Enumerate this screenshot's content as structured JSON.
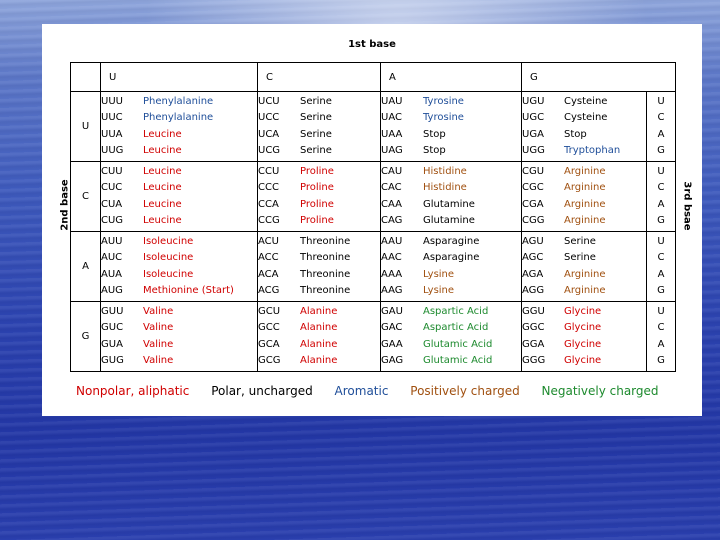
{
  "title": "1st base",
  "left_label": "2nd base",
  "right_label": "3rd bsae",
  "colors": {
    "nonpolar": "#d00000",
    "polar": "#000000",
    "aromatic": "#1f4e99",
    "positive": "#a05010",
    "negative": "#1d8a2e"
  },
  "header": [
    "U",
    "C",
    "A",
    "G"
  ],
  "rows": [
    {
      "label": "U",
      "third": [
        "U",
        "C",
        "A",
        "G"
      ],
      "cols": [
        [
          [
            "UUU",
            "Phenylalanine",
            "aro"
          ],
          [
            "UUC",
            "Phenylalanine",
            "aro"
          ],
          [
            "UUA",
            "Leucine",
            "np"
          ],
          [
            "UUG",
            "Leucine",
            "np"
          ]
        ],
        [
          [
            "UCU",
            "Serine",
            "pol"
          ],
          [
            "UCC",
            "Serine",
            "pol"
          ],
          [
            "UCA",
            "Serine",
            "pol"
          ],
          [
            "UCG",
            "Serine",
            "pol"
          ]
        ],
        [
          [
            "UAU",
            "Tyrosine",
            "aro"
          ],
          [
            "UAC",
            "Tyrosine",
            "aro"
          ],
          [
            "UAA",
            "Stop",
            "pol"
          ],
          [
            "UAG",
            "Stop",
            "pol"
          ]
        ],
        [
          [
            "UGU",
            "Cysteine",
            "pol"
          ],
          [
            "UGC",
            "Cysteine",
            "pol"
          ],
          [
            "UGA",
            "Stop",
            "pol"
          ],
          [
            "UGG",
            "Tryptophan",
            "aro"
          ]
        ]
      ]
    },
    {
      "label": "C",
      "third": [
        "U",
        "C",
        "A",
        "G"
      ],
      "cols": [
        [
          [
            "CUU",
            "Leucine",
            "np"
          ],
          [
            "CUC",
            "Leucine",
            "np"
          ],
          [
            "CUA",
            "Leucine",
            "np"
          ],
          [
            "CUG",
            "Leucine",
            "np"
          ]
        ],
        [
          [
            "CCU",
            "Proline",
            "np"
          ],
          [
            "CCC",
            "Proline",
            "np"
          ],
          [
            "CCA",
            "Proline",
            "np"
          ],
          [
            "CCG",
            "Proline",
            "np"
          ]
        ],
        [
          [
            "CAU",
            "Histidine",
            "pos"
          ],
          [
            "CAC",
            "Histidine",
            "pos"
          ],
          [
            "CAA",
            "Glutamine",
            "pol"
          ],
          [
            "CAG",
            "Glutamine",
            "pol"
          ]
        ],
        [
          [
            "CGU",
            "Arginine",
            "pos"
          ],
          [
            "CGC",
            "Arginine",
            "pos"
          ],
          [
            "CGA",
            "Arginine",
            "pos"
          ],
          [
            "CGG",
            "Arginine",
            "pos"
          ]
        ]
      ]
    },
    {
      "label": "A",
      "third": [
        "U",
        "C",
        "A",
        "G"
      ],
      "cols": [
        [
          [
            "AUU",
            "Isoleucine",
            "np"
          ],
          [
            "AUC",
            "Isoleucine",
            "np"
          ],
          [
            "AUA",
            "Isoleucine",
            "np"
          ],
          [
            "AUG",
            "Methionine (Start)",
            "np"
          ]
        ],
        [
          [
            "ACU",
            "Threonine",
            "pol"
          ],
          [
            "ACC",
            "Threonine",
            "pol"
          ],
          [
            "ACA",
            "Threonine",
            "pol"
          ],
          [
            "ACG",
            "Threonine",
            "pol"
          ]
        ],
        [
          [
            "AAU",
            "Asparagine",
            "pol"
          ],
          [
            "AAC",
            "Asparagine",
            "pol"
          ],
          [
            "AAA",
            "Lysine",
            "pos"
          ],
          [
            "AAG",
            "Lysine",
            "pos"
          ]
        ],
        [
          [
            "AGU",
            "Serine",
            "pol"
          ],
          [
            "AGC",
            "Serine",
            "pol"
          ],
          [
            "AGA",
            "Arginine",
            "pos"
          ],
          [
            "AGG",
            "Arginine",
            "pos"
          ]
        ]
      ]
    },
    {
      "label": "G",
      "third": [
        "U",
        "C",
        "A",
        "G"
      ],
      "cols": [
        [
          [
            "GUU",
            "Valine",
            "np"
          ],
          [
            "GUC",
            "Valine",
            "np"
          ],
          [
            "GUA",
            "Valine",
            "np"
          ],
          [
            "GUG",
            "Valine",
            "np"
          ]
        ],
        [
          [
            "GCU",
            "Alanine",
            "np"
          ],
          [
            "GCC",
            "Alanine",
            "np"
          ],
          [
            "GCA",
            "Alanine",
            "np"
          ],
          [
            "GCG",
            "Alanine",
            "np"
          ]
        ],
        [
          [
            "GAU",
            "Aspartic Acid",
            "neg"
          ],
          [
            "GAC",
            "Aspartic Acid",
            "neg"
          ],
          [
            "GAA",
            "Glutamic Acid",
            "neg"
          ],
          [
            "GAG",
            "Glutamic Acid",
            "neg"
          ]
        ],
        [
          [
            "GGU",
            "Glycine",
            "np"
          ],
          [
            "GGC",
            "Glycine",
            "np"
          ],
          [
            "GGA",
            "Glycine",
            "np"
          ],
          [
            "GGG",
            "Glycine",
            "np"
          ]
        ]
      ]
    }
  ],
  "legend": {
    "nonpolar": "Nonpolar, aliphatic",
    "polar": "Polar, uncharged",
    "aromatic": "Aromatic",
    "positive": "Positively charged",
    "negative": "Negatively charged"
  }
}
